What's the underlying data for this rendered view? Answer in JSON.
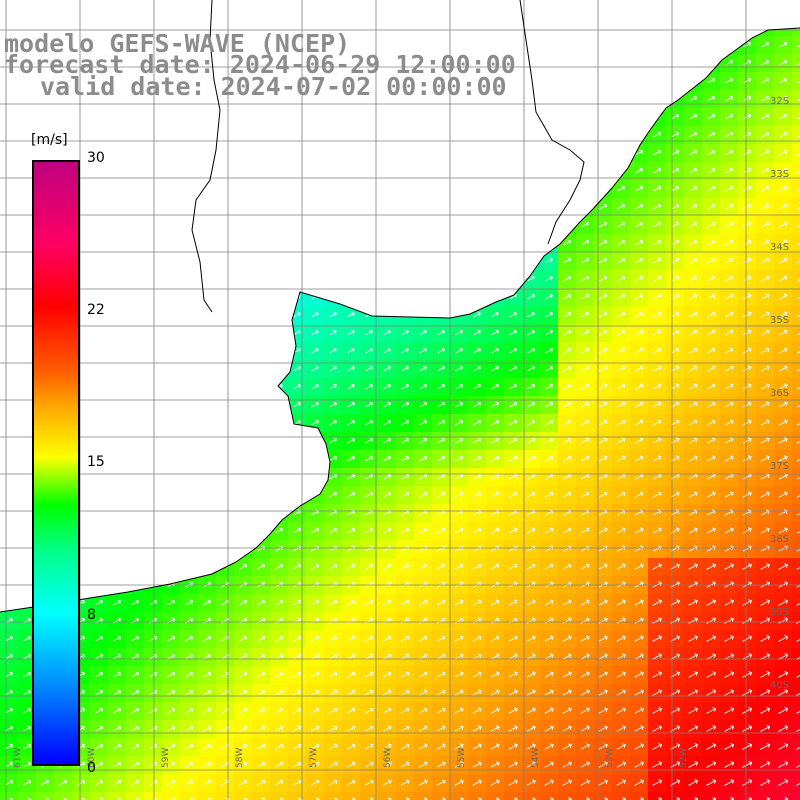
{
  "header": {
    "model": "modelo GEFS-WAVE (NCEP)",
    "forecast": "forecast date: 2024-06-29 12:00:00",
    "valid": "valid date: 2024-07-02 00:00:00"
  },
  "legend": {
    "unit": "[m/s]",
    "ticks": [
      {
        "label": "30",
        "value": 30
      },
      {
        "label": "22",
        "value": 22
      },
      {
        "label": "15",
        "value": 15
      },
      {
        "label": "8",
        "value": 8
      },
      {
        "label": "0",
        "value": 0
      }
    ]
  },
  "axes": {
    "lat_labels": [
      "32S",
      "33S",
      "34S",
      "35S",
      "36S",
      "37S",
      "38S",
      "39S",
      "40S"
    ],
    "lon_labels": [
      "61W",
      "60W",
      "59W",
      "58W",
      "57W",
      "56W",
      "55W",
      "54W",
      "53W",
      "52W"
    ]
  },
  "map": {
    "field": "wind speed with direction arrows",
    "colors": {
      "land": "#ffffff",
      "grid": "#808080",
      "coast": "#000000",
      "arrow": "#ffffff"
    }
  }
}
